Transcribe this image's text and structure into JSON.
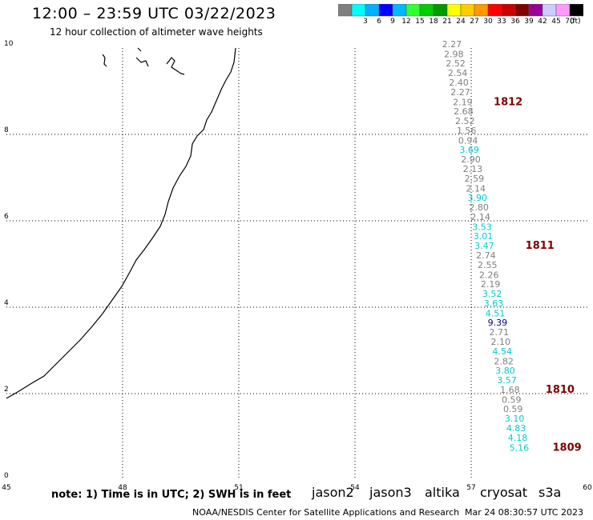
{
  "title": "12:00 – 23:59 UTC 03/22/2023",
  "subtitle": "12 hour collection of altimeter wave heights",
  "note": "note:  1) Time is in UTC;  2) SWH is in feet",
  "credit": "NOAA/NESDIS Center for Satellite Applications and Research",
  "timestamp": "Mar 24 08:30:57 UTC 2023",
  "colors": {
    "grey": "#7f7f7f",
    "cyan": "#00cccc",
    "navy": "#00007f",
    "maroon": "#7f0000",
    "jason2": "#0000cc",
    "jason3": "#009900",
    "altika": "#ff9900",
    "cryosat": "#cc0000",
    "s3a": "#7f0000"
  },
  "satellites": [
    {
      "label": "jason2",
      "color": "#0000cc"
    },
    {
      "label": "jason3",
      "color": "#009900"
    },
    {
      "label": "altika",
      "color": "#ff9900"
    },
    {
      "label": "cryosat",
      "color": "#cc0000"
    },
    {
      "label": "s3a",
      "color": "#7f0000"
    }
  ],
  "legend": {
    "unit": "(ft)",
    "swatches": [
      {
        "label": "",
        "color": "#7f7f7f"
      },
      {
        "label": "3",
        "color": "#00ffff"
      },
      {
        "label": "6",
        "color": "#00b0ff"
      },
      {
        "label": "9",
        "color": "#0000ff"
      },
      {
        "label": "12",
        "color": "#00b8ff"
      },
      {
        "label": "15",
        "color": "#33ff33"
      },
      {
        "label": "18",
        "color": "#00cc00"
      },
      {
        "label": "21",
        "color": "#009900"
      },
      {
        "label": "24",
        "color": "#ffff00"
      },
      {
        "label": "27",
        "color": "#ffcc00"
      },
      {
        "label": "30",
        "color": "#ff9900"
      },
      {
        "label": "33",
        "color": "#ff0000"
      },
      {
        "label": "36",
        "color": "#cc0000"
      },
      {
        "label": "39",
        "color": "#7f0000"
      },
      {
        "label": "42",
        "color": "#990099"
      },
      {
        "label": "45",
        "color": "#ccccff"
      },
      {
        "label": "70",
        "color": "#ff99ff"
      },
      {
        "label": "",
        "color": "#000000"
      }
    ]
  },
  "axes": {
    "x_ticks": [
      "45",
      "48",
      "51",
      "54",
      "57",
      "60"
    ],
    "y_ticks": [
      "0",
      "2",
      "4",
      "6",
      "8",
      "10"
    ]
  },
  "observations": [
    {
      "label": "2.27",
      "lon": 56.5,
      "lat": 10.02,
      "color": "grey"
    },
    {
      "label": "2.98",
      "lon": 56.55,
      "lat": 9.79,
      "color": "grey"
    },
    {
      "label": "2.52",
      "lon": 56.6,
      "lat": 9.57,
      "color": "grey"
    },
    {
      "label": "2.54",
      "lon": 56.65,
      "lat": 9.35,
      "color": "grey"
    },
    {
      "label": "2.40",
      "lon": 56.68,
      "lat": 9.13,
      "color": "grey"
    },
    {
      "label": "2.27",
      "lon": 56.72,
      "lat": 8.91,
      "color": "grey"
    },
    {
      "label": "2.19",
      "lon": 56.78,
      "lat": 8.68,
      "color": "grey"
    },
    {
      "label": "2.68",
      "lon": 56.8,
      "lat": 8.46,
      "color": "grey"
    },
    {
      "label": "2.52",
      "lon": 56.84,
      "lat": 8.24,
      "color": "grey"
    },
    {
      "label": "1.56",
      "lon": 56.88,
      "lat": 8.02,
      "color": "grey"
    },
    {
      "label": "0.94",
      "lon": 56.92,
      "lat": 7.79,
      "color": "grey"
    },
    {
      "label": "3.69",
      "lon": 56.95,
      "lat": 7.57,
      "color": "cyan"
    },
    {
      "label": "2.90",
      "lon": 56.99,
      "lat": 7.35,
      "color": "grey"
    },
    {
      "label": "2.13",
      "lon": 57.04,
      "lat": 7.13,
      "color": "grey"
    },
    {
      "label": "2.59",
      "lon": 57.08,
      "lat": 6.91,
      "color": "grey"
    },
    {
      "label": "2.14",
      "lon": 57.12,
      "lat": 6.68,
      "color": "grey"
    },
    {
      "label": "3.90",
      "lon": 57.16,
      "lat": 6.46,
      "color": "cyan"
    },
    {
      "label": "2.80",
      "lon": 57.2,
      "lat": 6.24,
      "color": "grey"
    },
    {
      "label": "2.14",
      "lon": 57.24,
      "lat": 6.02,
      "color": "grey"
    },
    {
      "label": "3.53",
      "lon": 57.28,
      "lat": 5.79,
      "color": "cyan"
    },
    {
      "label": "3.01",
      "lon": 57.31,
      "lat": 5.57,
      "color": "cyan"
    },
    {
      "label": "3.47",
      "lon": 57.34,
      "lat": 5.35,
      "color": "cyan"
    },
    {
      "label": "2.74",
      "lon": 57.38,
      "lat": 5.13,
      "color": "grey"
    },
    {
      "label": "2.55",
      "lon": 57.42,
      "lat": 4.91,
      "color": "grey"
    },
    {
      "label": "2.26",
      "lon": 57.46,
      "lat": 4.68,
      "color": "grey"
    },
    {
      "label": "2.19",
      "lon": 57.5,
      "lat": 4.46,
      "color": "grey"
    },
    {
      "label": "3.52",
      "lon": 57.54,
      "lat": 4.24,
      "color": "cyan"
    },
    {
      "label": "3.63",
      "lon": 57.58,
      "lat": 4.02,
      "color": "cyan"
    },
    {
      "label": "4.51",
      "lon": 57.62,
      "lat": 3.79,
      "color": "cyan"
    },
    {
      "label": "9.39",
      "lon": 57.68,
      "lat": 3.57,
      "color": "navy"
    },
    {
      "label": "2.71",
      "lon": 57.72,
      "lat": 3.35,
      "color": "grey"
    },
    {
      "label": "2.10",
      "lon": 57.76,
      "lat": 3.13,
      "color": "grey"
    },
    {
      "label": "4.54",
      "lon": 57.8,
      "lat": 2.91,
      "color": "cyan"
    },
    {
      "label": "2.82",
      "lon": 57.84,
      "lat": 2.68,
      "color": "grey"
    },
    {
      "label": "3.80",
      "lon": 57.88,
      "lat": 2.46,
      "color": "cyan"
    },
    {
      "label": "3.57",
      "lon": 57.92,
      "lat": 2.24,
      "color": "cyan"
    },
    {
      "label": "1.68",
      "lon": 58.0,
      "lat": 2.02,
      "color": "grey"
    },
    {
      "label": "0.59",
      "lon": 58.04,
      "lat": 1.79,
      "color": "grey"
    },
    {
      "label": "0.59",
      "lon": 58.08,
      "lat": 1.57,
      "color": "grey"
    },
    {
      "label": "3.10",
      "lon": 58.12,
      "lat": 1.35,
      "color": "cyan"
    },
    {
      "label": "4.83",
      "lon": 58.16,
      "lat": 1.13,
      "color": "cyan"
    },
    {
      "label": "4.18",
      "lon": 58.2,
      "lat": 0.91,
      "color": "cyan"
    },
    {
      "label": "5.16",
      "lon": 58.24,
      "lat": 0.68,
      "color": "cyan"
    }
  ],
  "time_markers": [
    {
      "label": "1812",
      "lon": 57.58,
      "lat": 8.68
    },
    {
      "label": "1811",
      "lon": 58.4,
      "lat": 5.35
    },
    {
      "label": "1810",
      "lon": 58.92,
      "lat": 2.02
    },
    {
      "label": "1809",
      "lon": 59.1,
      "lat": 0.68
    }
  ]
}
